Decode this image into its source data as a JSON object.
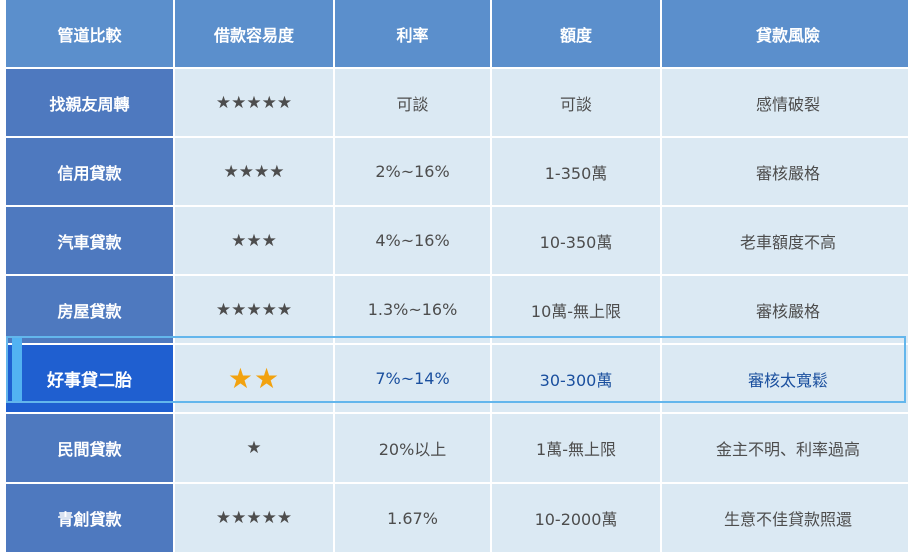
{
  "header": [
    "管道比較",
    "借款容易度",
    "利率",
    "額度",
    "貸款風險"
  ],
  "rows": [
    {
      "name": "找親友周轉",
      "stars": "★★★★★",
      "rate": "可談",
      "amount": "可談",
      "risk": "感情破裂"
    },
    {
      "name": "信用貸款",
      "stars": "★★★★",
      "rate": "2%~16%",
      "amount": "1-350萬",
      "risk": "審核嚴格"
    },
    {
      "name": "汽車貸款",
      "stars": "★★★",
      "rate": "4%~16%",
      "amount": "10-350萬",
      "risk": "老車額度不高"
    },
    {
      "name": "房屋貸款",
      "stars": "★★★★★",
      "rate": "1.3%~16%",
      "amount": "10萬-無上限",
      "risk": "審核嚴格"
    },
    {
      "name": "好事貸二胎",
      "stars": "★★",
      "rate": "7%~14%",
      "amount": "30-300萬",
      "risk": "審核太寬鬆"
    },
    {
      "name": "民間貸款",
      "stars": "★",
      "rate": "20%以上",
      "amount": "1萬-無上限",
      "risk": "金主不明、利率過高"
    },
    {
      "name": "青創貸款",
      "stars": "★★★★★",
      "rate": "1.67%",
      "amount": "10-2000萬",
      "risk": "生意不佳貸款照還"
    }
  ],
  "colors": {
    "header": "#5b8fcc",
    "row_header": "#4e79bf",
    "body": "#dbe9f3",
    "highlight": "#1f5fd0",
    "highlight_border": "#63b6ec",
    "star_highlight": "#f2a20f"
  }
}
